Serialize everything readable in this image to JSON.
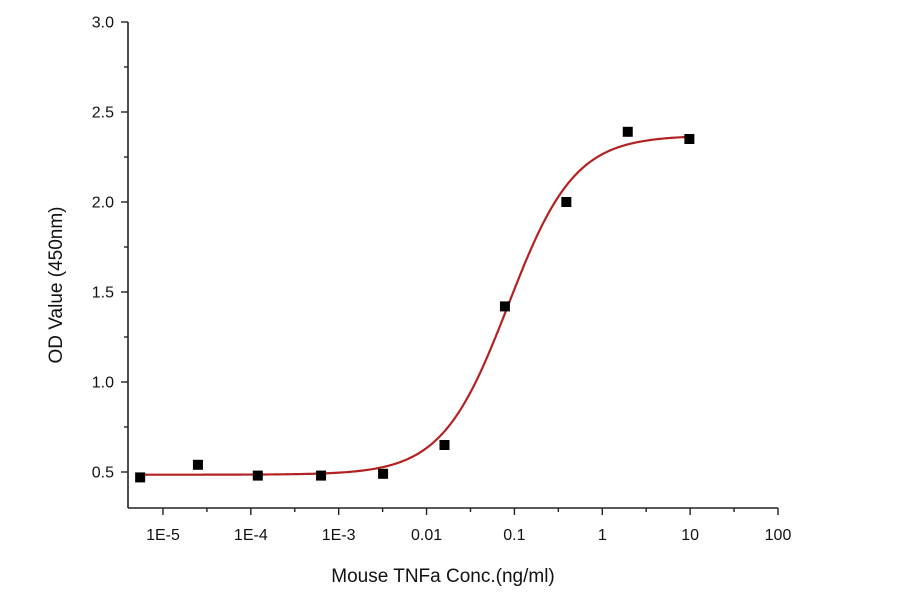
{
  "chart_data": {
    "type": "scatter",
    "title": "",
    "xlabel": "Mouse TNFa Conc.(ng/ml)",
    "ylabel": "OD Value (450nm)",
    "x_scale": "log",
    "xlim": [
      4e-06,
      100
    ],
    "ylim": [
      0.3,
      3.0
    ],
    "x_ticks": [
      {
        "value": 1e-05,
        "label": "1E-5"
      },
      {
        "value": 0.0001,
        "label": "1E-4"
      },
      {
        "value": 0.001,
        "label": "1E-3"
      },
      {
        "value": 0.01,
        "label": "0.01"
      },
      {
        "value": 0.1,
        "label": "0.1"
      },
      {
        "value": 1,
        "label": "1"
      },
      {
        "value": 10,
        "label": "10"
      },
      {
        "value": 100,
        "label": "100"
      }
    ],
    "y_ticks": [
      {
        "value": 0.5,
        "label": "0.5"
      },
      {
        "value": 1.0,
        "label": "1.0"
      },
      {
        "value": 1.5,
        "label": "1.5"
      },
      {
        "value": 2.0,
        "label": "2.0"
      },
      {
        "value": 2.5,
        "label": "2.5"
      },
      {
        "value": 3.0,
        "label": "3.0"
      }
    ],
    "grid": false,
    "series": [
      {
        "type": "scatter",
        "marker": "square",
        "color": "#000000",
        "points": [
          {
            "x": 5.5e-06,
            "y": 0.47
          },
          {
            "x": 2.5e-05,
            "y": 0.54
          },
          {
            "x": 0.00012,
            "y": 0.48
          },
          {
            "x": 0.00063,
            "y": 0.48
          },
          {
            "x": 0.0032,
            "y": 0.49
          },
          {
            "x": 0.016,
            "y": 0.65
          },
          {
            "x": 0.078,
            "y": 1.42
          },
          {
            "x": 0.39,
            "y": 2.0
          },
          {
            "x": 1.95,
            "y": 2.39
          },
          {
            "x": 9.8,
            "y": 2.35
          }
        ]
      },
      {
        "type": "line",
        "fit": "four-parameter logistic",
        "color": "#b22222",
        "params": {
          "bottom": 0.485,
          "top": 2.37,
          "ec50": 0.085,
          "hill": 1.15
        }
      }
    ]
  }
}
